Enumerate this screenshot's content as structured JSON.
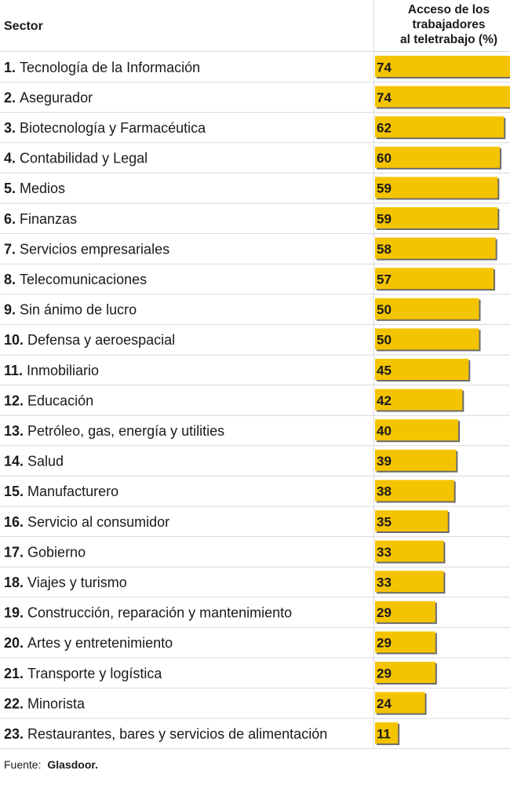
{
  "header": {
    "sector_label": "Sector",
    "value_label_lines": [
      "Acceso de los",
      "trabajadores",
      "al teletrabajo (%)"
    ]
  },
  "source": {
    "prefix": "Fuente:",
    "name": "Glasdoor."
  },
  "colors": {
    "bar": "#f5c400",
    "bar_shadow": "#6b6b6b",
    "grid": "#d9d9d9",
    "text": "#1a1a1a"
  },
  "chart_data": {
    "type": "bar",
    "orientation": "horizontal",
    "xlim": [
      0,
      80
    ],
    "categories": [
      "Tecnología de la Información",
      "Asegurador",
      "Biotecnología y Farmacéutica",
      "Contabilidad y Legal",
      "Medios",
      "Finanzas",
      "Servicios empresariales",
      "Telecomunicaciones",
      "Sin ánimo de lucro",
      "Defensa y aeroespacial",
      "Inmobiliario",
      "Educación",
      "Petróleo, gas, energía y utilities",
      "Salud",
      "Manufacturero",
      "Servicio al consumidor",
      "Gobierno",
      "Viajes y turismo",
      "Construcción, reparación y mantenimiento",
      "Artes y entretenimiento",
      "Transporte y logística",
      "Minorista",
      "Restaurantes, bares y servicios de alimentación"
    ],
    "ranks": [
      "1.",
      "2.",
      "3.",
      "4.",
      "5.",
      "6.",
      "7.",
      "8.",
      "9.",
      "10.",
      "11.",
      "12.",
      "13.",
      "14.",
      "15.",
      "16.",
      "17.",
      "18.",
      "19.",
      "20.",
      "21.",
      "22.",
      "23."
    ],
    "values": [
      74,
      74,
      62,
      60,
      59,
      59,
      58,
      57,
      50,
      50,
      45,
      42,
      40,
      39,
      38,
      35,
      33,
      33,
      29,
      29,
      29,
      24,
      11
    ]
  }
}
